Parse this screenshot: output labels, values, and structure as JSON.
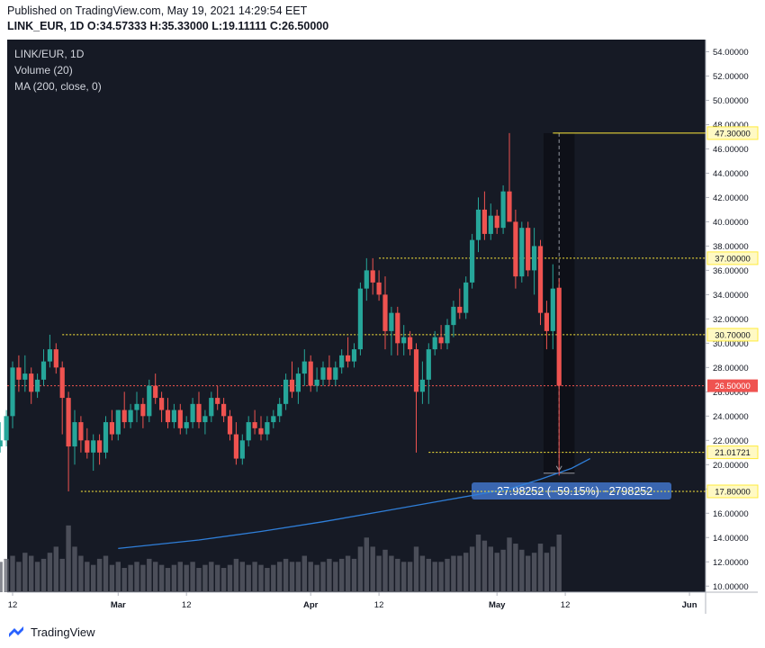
{
  "header": {
    "published": "Published on TradingView.com, May 19, 2021 14:29:54 EET",
    "ohlc": "LINK_EUR, 1D  O:34.57333 H:35.33000 L:19.11111 C:26.50000"
  },
  "legend": {
    "symbol": "LINK/EUR, 1D",
    "volume": "Volume (20)",
    "ma": "MA (200, close, 0)"
  },
  "footer": {
    "brand": "TradingView"
  },
  "colors": {
    "background": "#161a25",
    "up": "#26a69a",
    "down": "#ef5350",
    "volume": "#5d606b",
    "ma": "#2f7ed8",
    "levels": "#ffeb3b",
    "last_price": "#ef5350",
    "measure": "#3a66b0"
  },
  "chart_data": {
    "type": "candlestick",
    "title": "LINK/EUR, 1D",
    "y_axis": {
      "range": [
        9.5,
        55.0
      ],
      "ticks": [
        10,
        12,
        14,
        16,
        18,
        20,
        22,
        24,
        26,
        28,
        30,
        32,
        34,
        36,
        38,
        40,
        42,
        44,
        46,
        48,
        50,
        52,
        54
      ],
      "tick_labels": [
        "10.00000",
        "12.00000",
        "14.00000",
        "16.00000",
        "18.00000",
        "20.00000",
        "22.00000",
        "24.00000",
        "26.00000",
        "28.00000",
        "30.00000",
        "32.00000",
        "34.00000",
        "36.00000",
        "38.00000",
        "40.00000",
        "42.00000",
        "44.00000",
        "46.00000",
        "48.00000",
        "50.00000",
        "52.00000",
        "54.00000"
      ]
    },
    "x_axis": {
      "labels": [
        {
          "text": "12",
          "day": 0
        },
        {
          "text": "Mar",
          "day": 17
        },
        {
          "text": "12",
          "day": 28
        },
        {
          "text": "Apr",
          "day": 48
        },
        {
          "text": "12",
          "day": 59
        },
        {
          "text": "May",
          "day": 78
        },
        {
          "text": "12",
          "day": 89
        },
        {
          "text": "Jun",
          "day": 109
        }
      ]
    },
    "candles": [
      [
        21.5,
        23.5,
        21.0,
        22.0
      ],
      [
        22.0,
        24.5,
        21.5,
        24.0
      ],
      [
        24.0,
        28.5,
        23.0,
        28.0
      ],
      [
        28.0,
        29.0,
        26.0,
        27.0
      ],
      [
        27.0,
        29.0,
        26.0,
        27.5
      ],
      [
        27.5,
        28.0,
        25.0,
        26.0
      ],
      [
        26.0,
        27.5,
        25.5,
        27.0
      ],
      [
        27.0,
        29.5,
        26.5,
        28.5
      ],
      [
        28.5,
        30.7,
        28.0,
        29.5
      ],
      [
        29.5,
        30.0,
        27.5,
        28.0
      ],
      [
        28.0,
        28.5,
        22.5,
        25.5
      ],
      [
        25.5,
        26.0,
        17.8,
        21.5
      ],
      [
        21.5,
        24.5,
        20.0,
        23.5
      ],
      [
        23.5,
        24.0,
        21.0,
        22.0
      ],
      [
        22.0,
        23.0,
        20.5,
        21.0
      ],
      [
        21.0,
        22.5,
        19.5,
        22.0
      ],
      [
        22.0,
        22.5,
        20.0,
        21.0
      ],
      [
        21.0,
        24.0,
        20.5,
        23.5
      ],
      [
        23.5,
        24.5,
        22.0,
        22.5
      ],
      [
        22.5,
        24.5,
        22.0,
        24.5
      ],
      [
        24.5,
        26.0,
        23.0,
        23.5
      ],
      [
        23.5,
        25.0,
        23.0,
        24.5
      ],
      [
        24.5,
        26.0,
        23.5,
        25.0
      ],
      [
        25.0,
        25.5,
        23.0,
        24.0
      ],
      [
        24.0,
        27.0,
        23.5,
        26.5
      ],
      [
        26.5,
        27.5,
        25.0,
        25.5
      ],
      [
        25.5,
        26.0,
        23.5,
        24.5
      ],
      [
        24.5,
        25.5,
        23.0,
        23.5
      ],
      [
        23.5,
        25.0,
        23.0,
        24.5
      ],
      [
        24.5,
        25.0,
        22.5,
        23.0
      ],
      [
        23.0,
        24.0,
        22.5,
        23.5
      ],
      [
        23.5,
        25.5,
        23.0,
        25.0
      ],
      [
        25.0,
        26.0,
        23.0,
        23.5
      ],
      [
        23.5,
        24.5,
        22.5,
        24.0
      ],
      [
        24.0,
        26.0,
        23.5,
        25.5
      ],
      [
        25.5,
        26.5,
        24.5,
        25.0
      ],
      [
        25.0,
        25.5,
        23.5,
        24.0
      ],
      [
        24.0,
        24.5,
        22.0,
        22.5
      ],
      [
        22.5,
        23.5,
        20.0,
        20.5
      ],
      [
        20.5,
        22.5,
        20.0,
        22.0
      ],
      [
        22.0,
        24.0,
        21.5,
        23.5
      ],
      [
        23.5,
        24.5,
        22.5,
        23.0
      ],
      [
        23.0,
        24.0,
        22.0,
        22.5
      ],
      [
        22.5,
        24.0,
        22.0,
        23.5
      ],
      [
        23.5,
        24.5,
        23.0,
        24.0
      ],
      [
        24.0,
        25.5,
        23.5,
        25.0
      ],
      [
        25.0,
        27.5,
        24.5,
        27.0
      ],
      [
        27.0,
        28.5,
        25.5,
        26.0
      ],
      [
        26.0,
        28.0,
        25.0,
        27.5
      ],
      [
        27.5,
        29.5,
        26.5,
        28.5
      ],
      [
        28.5,
        29.0,
        26.0,
        26.5
      ],
      [
        26.5,
        28.0,
        26.0,
        27.0
      ],
      [
        27.0,
        28.5,
        26.5,
        28.0
      ],
      [
        28.0,
        29.0,
        26.5,
        27.0
      ],
      [
        27.0,
        28.5,
        26.5,
        28.0
      ],
      [
        28.0,
        29.5,
        27.5,
        29.0
      ],
      [
        29.0,
        30.5,
        28.0,
        28.5
      ],
      [
        28.5,
        30.0,
        28.0,
        29.5
      ],
      [
        29.5,
        35.0,
        29.0,
        34.5
      ],
      [
        34.5,
        37.0,
        33.5,
        36.0
      ],
      [
        36.0,
        37.0,
        34.0,
        35.0
      ],
      [
        35.0,
        36.0,
        33.5,
        34.0
      ],
      [
        34.0,
        35.5,
        29.5,
        31.0
      ],
      [
        31.0,
        33.0,
        29.0,
        32.5
      ],
      [
        32.5,
        33.0,
        29.0,
        30.0
      ],
      [
        30.0,
        31.5,
        29.0,
        30.5
      ],
      [
        30.5,
        31.0,
        29.0,
        29.5
      ],
      [
        29.5,
        30.0,
        21.0,
        26.0
      ],
      [
        26.0,
        28.5,
        25.0,
        27.0
      ],
      [
        27.0,
        30.0,
        25.0,
        29.5
      ],
      [
        29.5,
        31.0,
        29.0,
        30.5
      ],
      [
        30.5,
        31.5,
        29.5,
        30.0
      ],
      [
        30.0,
        32.0,
        29.5,
        31.5
      ],
      [
        31.5,
        33.5,
        30.5,
        33.0
      ],
      [
        33.0,
        34.5,
        32.0,
        32.5
      ],
      [
        32.5,
        35.5,
        32.0,
        35.0
      ],
      [
        35.0,
        39.0,
        34.5,
        38.5
      ],
      [
        38.5,
        42.0,
        37.5,
        41.0
      ],
      [
        41.0,
        42.5,
        38.5,
        39.0
      ],
      [
        39.0,
        41.5,
        38.5,
        40.5
      ],
      [
        40.5,
        41.0,
        39.0,
        39.5
      ],
      [
        39.5,
        43.0,
        39.0,
        42.5
      ],
      [
        42.5,
        47.3,
        40.0,
        40.0
      ],
      [
        40.0,
        41.0,
        34.5,
        35.5
      ],
      [
        35.5,
        40.0,
        35.0,
        39.5
      ],
      [
        39.5,
        40.0,
        35.5,
        36.0
      ],
      [
        36.0,
        39.5,
        34.0,
        38.0
      ],
      [
        38.0,
        38.5,
        31.5,
        32.5
      ],
      [
        32.5,
        33.5,
        29.5,
        31.0
      ],
      [
        31.0,
        36.5,
        29.5,
        34.5
      ],
      [
        34.57,
        35.33,
        19.11,
        26.5
      ]
    ],
    "start_day": -2,
    "volume": {
      "range_max": 3.5,
      "values": [
        1.0,
        1.1,
        1.2,
        1.0,
        1.3,
        1.2,
        1.0,
        1.1,
        1.3,
        1.5,
        1.1,
        2.2,
        1.5,
        1.2,
        1.0,
        0.9,
        1.1,
        1.2,
        0.9,
        1.0,
        0.8,
        0.9,
        1.0,
        0.9,
        1.1,
        1.0,
        0.9,
        0.8,
        0.9,
        1.0,
        0.9,
        1.0,
        0.8,
        0.9,
        1.0,
        0.9,
        0.8,
        0.9,
        1.1,
        1.0,
        0.9,
        1.0,
        0.9,
        0.8,
        0.9,
        1.0,
        1.1,
        1.0,
        1.0,
        1.2,
        1.0,
        0.9,
        1.0,
        1.1,
        1.0,
        1.1,
        1.2,
        1.1,
        1.5,
        1.8,
        1.5,
        1.2,
        1.4,
        1.2,
        1.1,
        1.0,
        1.0,
        1.5,
        1.2,
        1.1,
        1.0,
        1.0,
        1.1,
        1.2,
        1.2,
        1.3,
        1.5,
        1.9,
        1.7,
        1.5,
        1.3,
        1.4,
        1.8,
        1.6,
        1.4,
        1.2,
        1.3,
        1.6,
        1.3,
        1.5,
        1.9
      ]
    },
    "ma200": {
      "name": "MA (200, close, 0)",
      "points": [
        [
          17,
          13.1
        ],
        [
          30,
          13.8
        ],
        [
          40,
          14.5
        ],
        [
          50,
          15.3
        ],
        [
          60,
          16.2
        ],
        [
          70,
          17.1
        ],
        [
          80,
          18.0
        ],
        [
          85,
          18.8
        ],
        [
          90,
          19.7
        ],
        [
          93,
          20.5
        ]
      ]
    },
    "levels": [
      {
        "value": 47.3,
        "label": "47.30000",
        "from_day": 87
      },
      {
        "value": 37.0,
        "label": "37.00000",
        "from_day": 59
      },
      {
        "value": 30.7,
        "label": "30.70000",
        "from_day": 8
      },
      {
        "value": 21.01721,
        "label": "21.01721",
        "from_day": 67
      },
      {
        "value": 17.8,
        "label": "17.80000",
        "from_day": 11
      }
    ],
    "last_price": {
      "value": 26.5,
      "label": "26.50000"
    },
    "measure": {
      "from_day": 85.5,
      "to_day": 90.5,
      "top": 47.3,
      "bottom": 19.3,
      "label": "−27.98252 (−59.15%) −2798252"
    }
  }
}
